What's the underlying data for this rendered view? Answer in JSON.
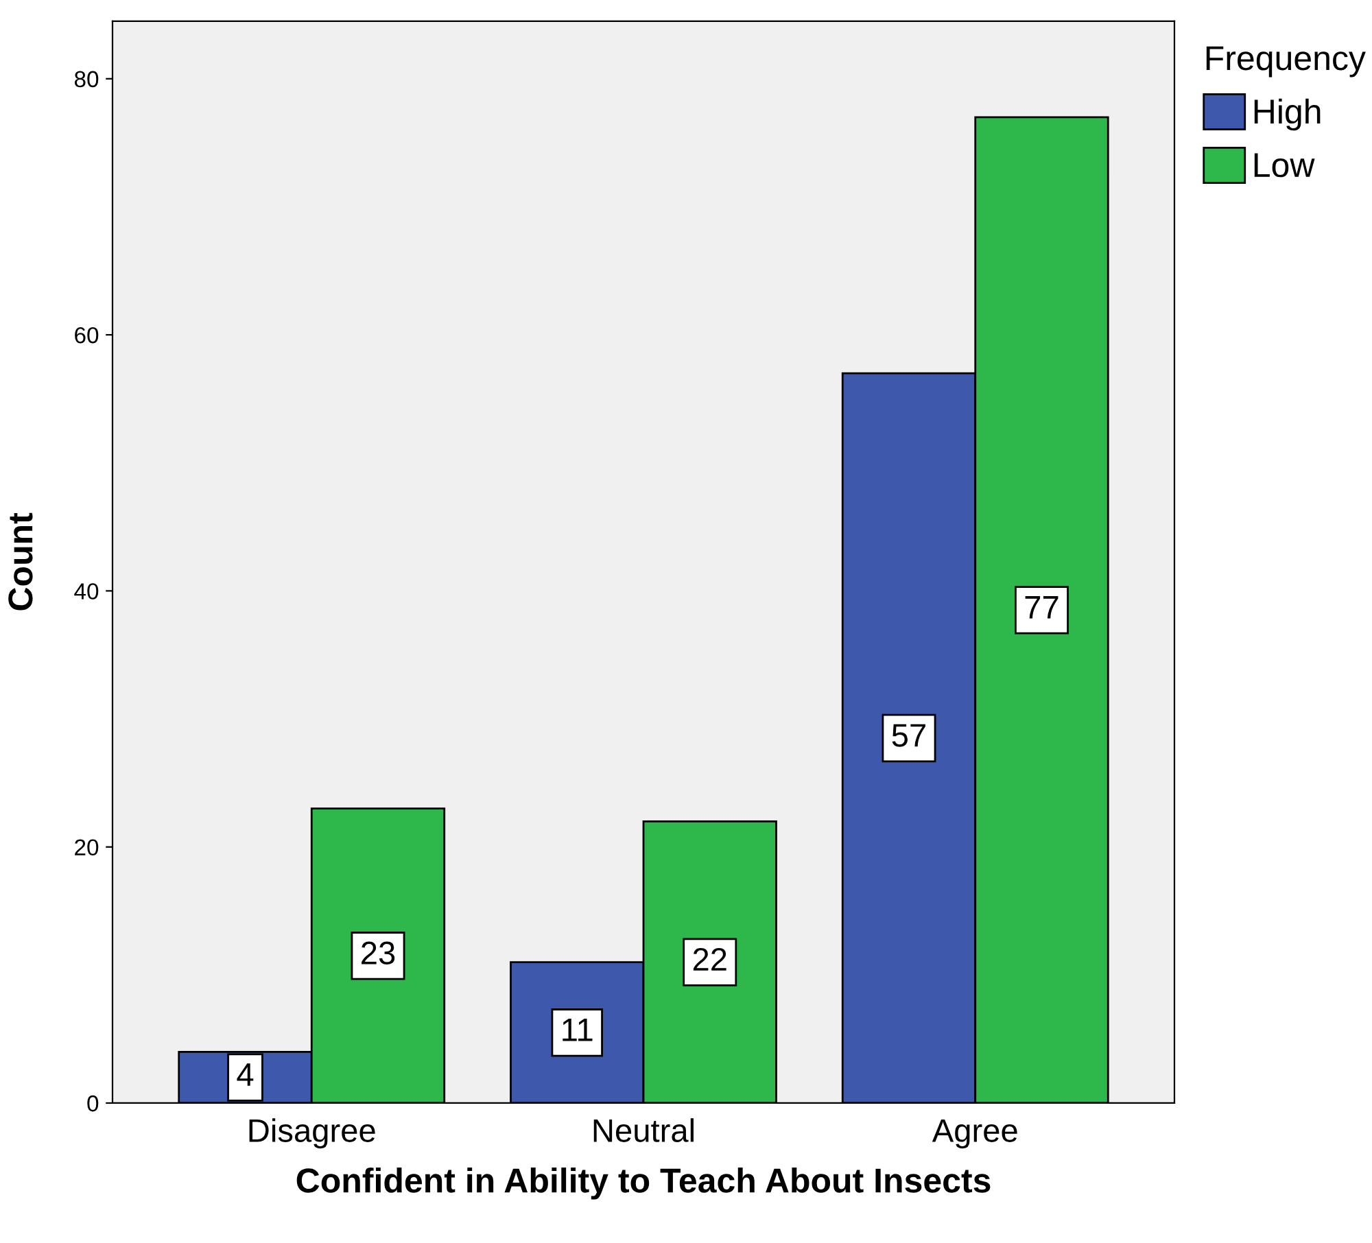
{
  "chart_data": {
    "type": "bar",
    "xlabel": "Confident in Ability to Teach About Insects",
    "ylabel": "Count",
    "legend_title": "Frequency",
    "categories": [
      "Disagree",
      "Neutral",
      "Agree"
    ],
    "series": [
      {
        "name": "High",
        "color": "#3e58ac",
        "values": [
          4,
          11,
          57
        ]
      },
      {
        "name": "Low",
        "color": "#2eb84b",
        "values": [
          23,
          22,
          77
        ]
      }
    ],
    "ylim": [
      0,
      84.5
    ],
    "yticks": [
      0,
      20,
      40,
      60,
      80
    ],
    "data_labels": true,
    "legend": "top right",
    "grid": false
  }
}
